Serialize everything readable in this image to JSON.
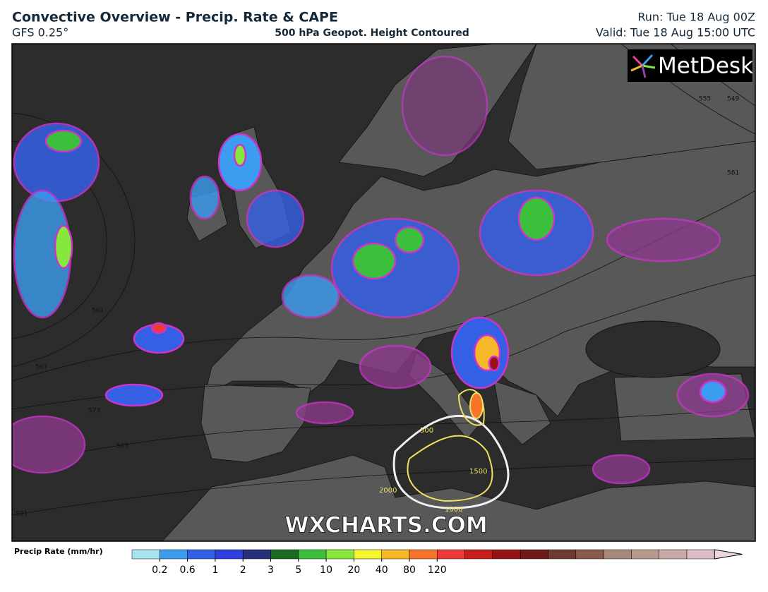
{
  "header": {
    "title": "Convective Overview - Precip. Rate & CAPE",
    "model": "GFS 0.25°",
    "subtitle": "500 hPa Geopot. Height Contoured",
    "run": "Run: Tue 18 Aug 00Z",
    "valid": "Valid: Tue 18 Aug 15:00 UTC"
  },
  "logo": "MetDesk",
  "watermark": "WXCHARTS.COM",
  "contour_labels": [
    "561",
    "567",
    "573",
    "585",
    "591",
    "555",
    "549",
    "561"
  ],
  "cape_labels": [
    "2000",
    "1500",
    "1000",
    "500"
  ],
  "colorbar": {
    "label": "Precip Rate (mm/hr)",
    "ticks": [
      0.2,
      0.6,
      1,
      2,
      3,
      5,
      10,
      20,
      40,
      80,
      120
    ],
    "colors": [
      "#a8e4ee",
      "#3b9cf0",
      "#3560e6",
      "#2f3fe0",
      "#27307a",
      "#1c6b22",
      "#3cbf3c",
      "#86e83a",
      "#f5f530",
      "#f5b82a",
      "#f5742a",
      "#ef3a3a",
      "#c81e1e",
      "#961414",
      "#6e1a1a",
      "#6e3a32",
      "#8a5a4a",
      "#a8887a",
      "#b89a8c",
      "#c8aaa8",
      "#dcbcc8",
      "#ecd4e0"
    ]
  }
}
